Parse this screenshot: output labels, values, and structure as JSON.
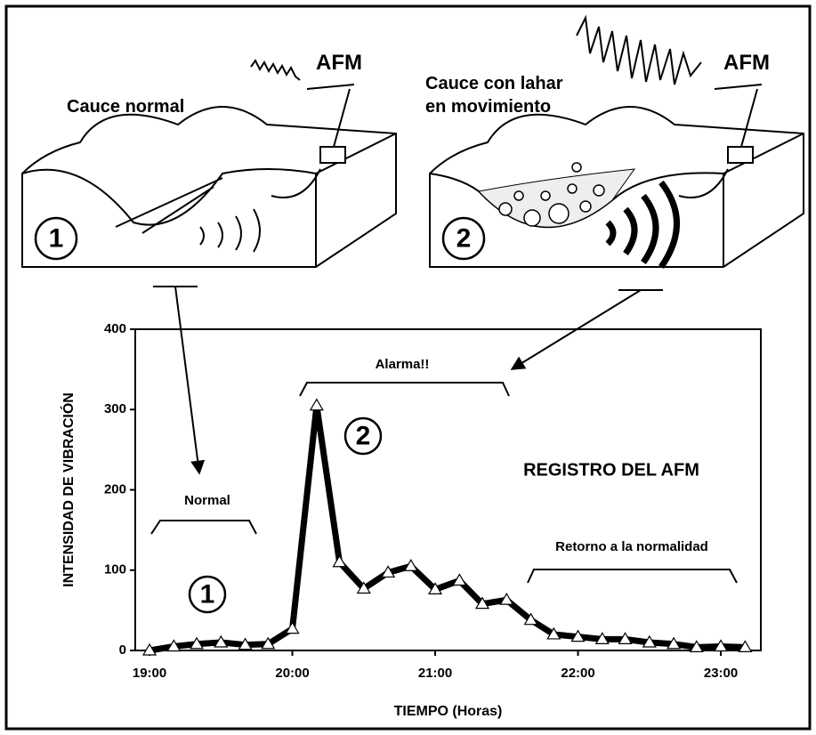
{
  "illustration": {
    "panels": [
      {
        "number": "1",
        "caption": [
          "Cauce normal"
        ],
        "station": "AFM"
      },
      {
        "number": "2",
        "caption": [
          "Cauce con lahar",
          "en movimiento"
        ],
        "station": "AFM"
      }
    ]
  },
  "chart_data": {
    "type": "line",
    "x_label": "TIEMPO (Horas)",
    "y_label": "INTENSIDAD DE VIBRACIÓN",
    "annotations": [
      "Normal",
      "Alarma!!",
      "Retorno a la normalidad",
      "REGISTRO DEL AFM",
      "1",
      "2"
    ],
    "x": [
      19.0,
      19.17,
      19.33,
      19.5,
      19.67,
      19.83,
      20.0,
      20.17,
      20.33,
      20.5,
      20.67,
      20.83,
      21.0,
      21.17,
      21.33,
      21.5,
      21.67,
      21.83,
      22.0,
      22.17,
      22.33,
      22.5,
      22.67,
      22.83,
      23.0,
      23.17
    ],
    "series": [
      {
        "name": "AFM",
        "color": "#000000",
        "values": [
          0,
          5,
          8,
          10,
          7,
          8,
          27,
          305,
          110,
          77,
          97,
          105,
          76,
          87,
          58,
          63,
          38,
          20,
          17,
          14,
          14,
          10,
          8,
          4,
          5,
          4
        ]
      }
    ],
    "xlim": [
      18.9,
      23.28
    ],
    "ylim": [
      0,
      400
    ],
    "xticks": [
      {
        "value": 19,
        "label": "19:00"
      },
      {
        "value": 20,
        "label": "20:00"
      },
      {
        "value": 21,
        "label": "21:00"
      },
      {
        "value": 22,
        "label": "22:00"
      },
      {
        "value": 23,
        "label": "23:00"
      }
    ],
    "yticks": [
      0,
      100,
      200,
      300,
      400
    ],
    "grid": false
  }
}
